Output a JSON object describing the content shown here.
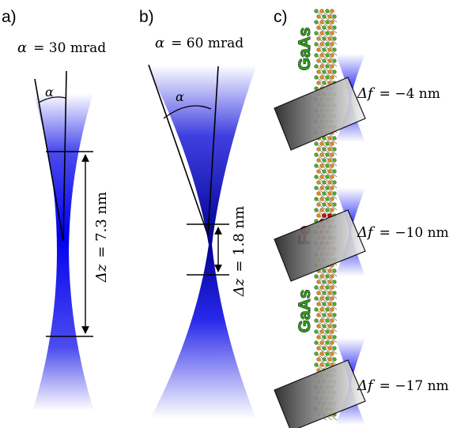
{
  "panels": {
    "a": {
      "letter": "a)",
      "alpha_symbol": "α",
      "alpha_value": "= 30 mrad",
      "angle_label": "α",
      "dz_symbol": "Δz",
      "dz_value": "= 7.3 nm"
    },
    "b": {
      "letter": "b)",
      "alpha_symbol": "α",
      "alpha_value": "= 60 mrad",
      "angle_label": "α",
      "dz_symbol": "Δz",
      "dz_value": "= 1.8 nm"
    },
    "c": {
      "letter": "c)",
      "materials": [
        {
          "text": "GaAs",
          "color": "#2e9b1a"
        },
        {
          "text": "Fe",
          "color": "#e0101a"
        },
        {
          "text": "GaAs",
          "color": "#2e9b1a"
        }
      ],
      "planes": [
        {
          "df_symbol": "Δf",
          "df_value": "= −4 nm"
        },
        {
          "df_symbol": "Δf",
          "df_value": "= −10 nm"
        },
        {
          "df_symbol": "Δf",
          "df_value": "= −17 nm"
        }
      ]
    }
  },
  "colors": {
    "beam": "#1010e8",
    "atom_green": "#4caf2a",
    "atom_orange": "#e08a1e",
    "atom_fe": "#c01010"
  }
}
